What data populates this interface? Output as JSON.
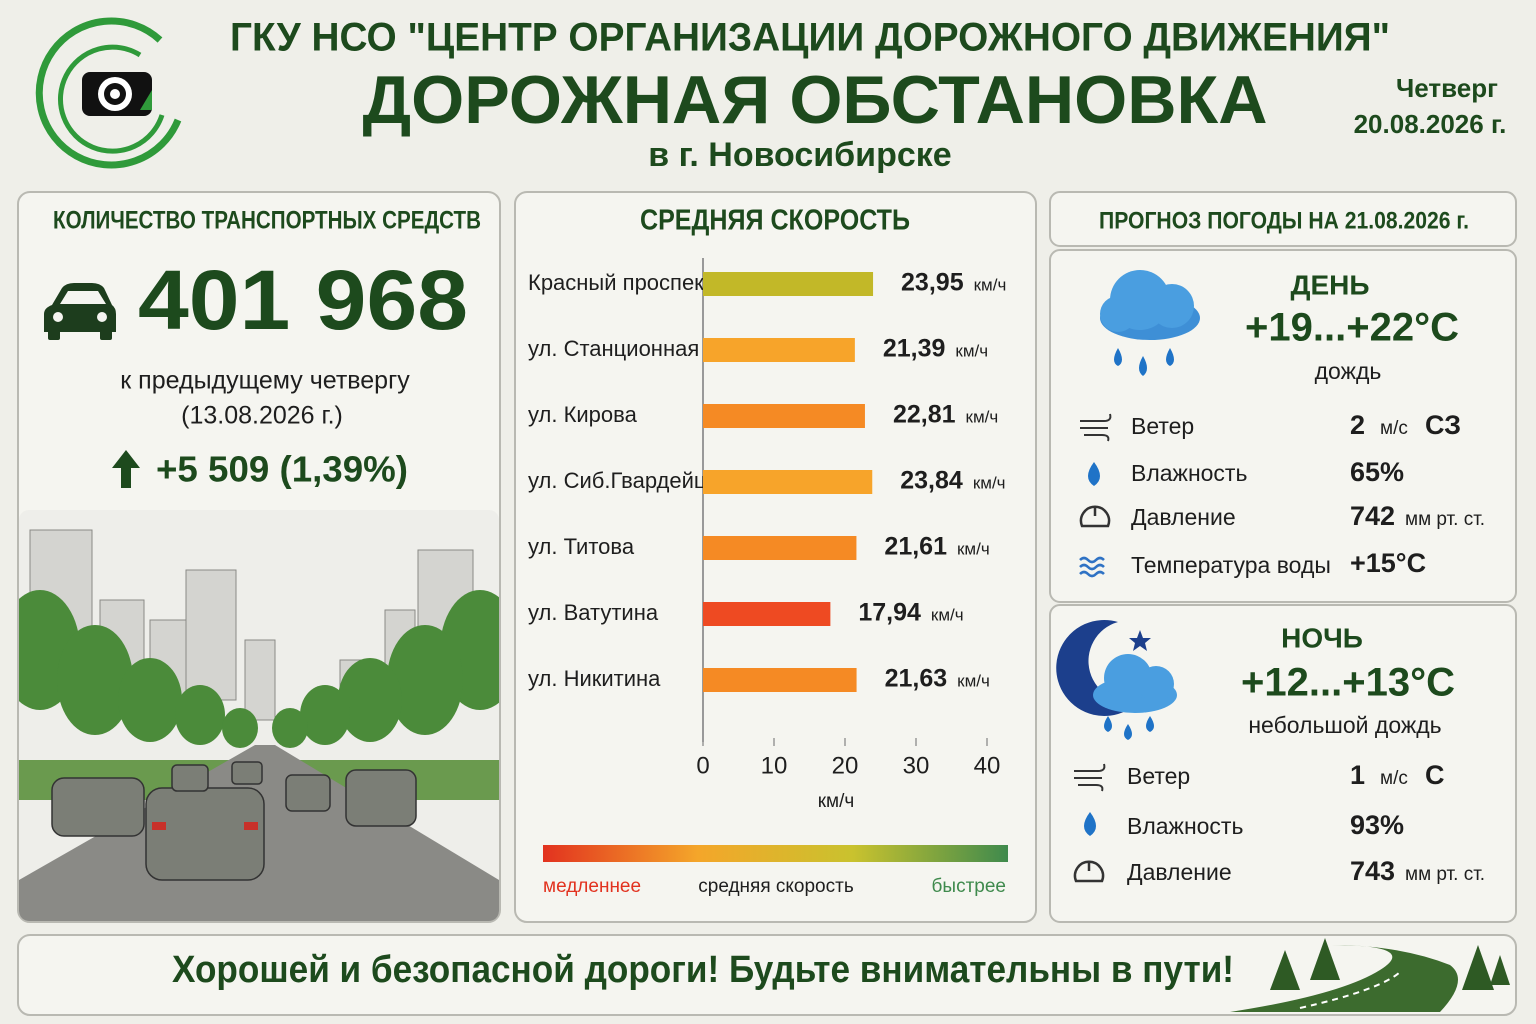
{
  "header": {
    "org": "ГКУ НСО \"ЦЕНТР ОРГАНИЗАЦИИ ДОРОЖНОГО ДВИЖЕНИЯ\"",
    "title": "ДОРОЖНАЯ ОБСТАНОВКА",
    "subtitle": "в г. Новосибирске",
    "weekday": "Четверг",
    "date": "20.08.2026 г."
  },
  "vehicles": {
    "title": "КОЛИЧЕСТВО ТРАНСПОРТНЫХ СРЕДСТВ",
    "count": "401 968",
    "compare": "к предыдущему четвергу",
    "compare_date": "(13.08.2026 г.)",
    "change": "+5 509 (1,39%)"
  },
  "chart_data": {
    "type": "bar",
    "orientation": "horizontal",
    "title": "СРЕДНЯЯ СКОРОСТЬ",
    "categories": [
      "Красный проспект",
      "ул. Станционная",
      "ул. Кирова",
      "ул. Сиб.Гвардейцев",
      "ул. Титова",
      "ул. Ватутина",
      "ул. Никитина"
    ],
    "values": [
      23.95,
      21.39,
      22.81,
      23.84,
      21.61,
      17.94,
      21.63
    ],
    "value_labels": [
      "23,95",
      "21,39",
      "22,81",
      "23,84",
      "21,61",
      "17,94",
      "21,63"
    ],
    "value_unit": "км/ч",
    "colors": [
      "#c2b828",
      "#f7a42a",
      "#f58a24",
      "#f7a42a",
      "#f58a24",
      "#ee4a22",
      "#f58a24"
    ],
    "xlabel": "км/ч",
    "xlim": [
      0,
      40
    ],
    "xticks": [
      0,
      10,
      20,
      30,
      40
    ],
    "scale": {
      "slow": "медленнее",
      "mid": "средняя скорость",
      "fast": "быстрее",
      "colors": [
        "#e2321f",
        "#f4a62a",
        "#c9c22e",
        "#3f8a4d"
      ]
    }
  },
  "weather": {
    "title": "ПРОГНОЗ ПОГОДЫ НА 21.08.2026 г.",
    "day": {
      "label": "ДЕНЬ",
      "temp": "+19...+22°C",
      "desc": "дождь",
      "rows": [
        {
          "name": "Ветер",
          "value": "2",
          "unit": "м/с",
          "extra": "СЗ"
        },
        {
          "name": "Влажность",
          "value": "65%"
        },
        {
          "name": "Давление",
          "value": "742",
          "unit": "мм рт. ст."
        },
        {
          "name": "Температура воды",
          "value": "+15°C"
        }
      ]
    },
    "night": {
      "label": "НОЧЬ",
      "temp": "+12...+13°C",
      "desc": "небольшой дождь",
      "rows": [
        {
          "name": "Ветер",
          "value": "1",
          "unit": "м/с",
          "extra": "С"
        },
        {
          "name": "Влажность",
          "value": "93%"
        },
        {
          "name": "Давление",
          "value": "743",
          "unit": "мм рт. ст."
        }
      ]
    }
  },
  "footer": "Хорошей и безопасной дороги! Будьте внимательны в пути!"
}
